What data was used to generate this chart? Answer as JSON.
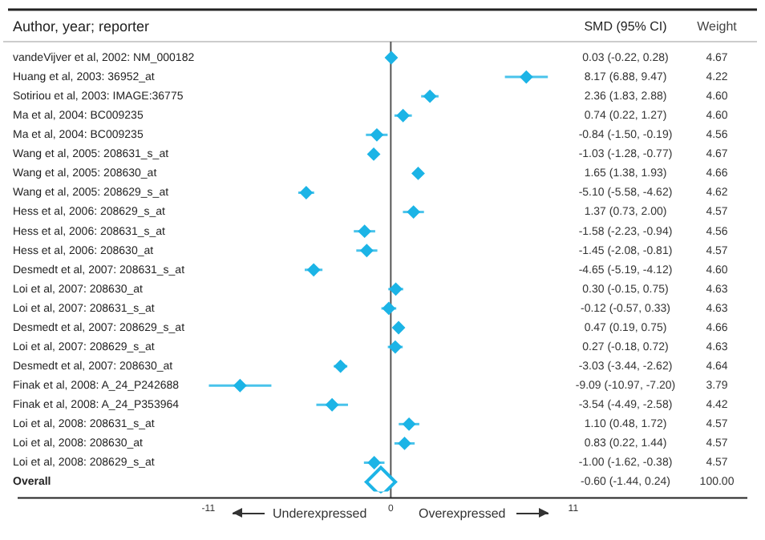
{
  "chart_data": {
    "type": "scatter",
    "orientation": "horizontal",
    "ylabel": "Author, year; reporter",
    "categories": [
      "vandeVijver et al, 2002: NM_000182",
      "Huang et al, 2003: 36952_at",
      "Sotiriou et al, 2003: IMAGE:36775",
      "Ma et al, 2004: BC009235",
      "Ma et al, 2004: BC009235",
      "Wang et al, 2005: 208631_s_at",
      "Wang et al, 2005: 208630_at",
      "Wang et al, 2005: 208629_s_at",
      "Hess et al, 2006: 208629_s_at",
      "Hess et al, 2006: 208631_s_at",
      "Hess et al, 2006: 208630_at",
      "Desmedt et al, 2007: 208631_s_at",
      "Loi et al, 2007: 208630_at",
      "Loi et al, 2007: 208631_s_at",
      "Desmedt et al, 2007: 208629_s_at",
      "Loi et al, 2007: 208629_s_at",
      "Desmedt et al, 2007: 208630_at",
      "Finak et al, 2008: A_24_P242688",
      "Finak et al, 2008: A_24_P353964",
      "Loi et al, 2008: 208631_s_at",
      "Loi et al, 2008: 208630_at",
      "Loi et al, 2008: 208629_s_at",
      "Overall"
    ],
    "series": [
      {
        "color": "#1cb4e6",
        "marker": "diamond",
        "values": [
          0.03,
          8.17,
          2.36,
          0.74,
          -0.84,
          -1.03,
          1.65,
          -5.1,
          1.37,
          -1.58,
          -1.45,
          -4.65,
          0.3,
          -0.12,
          0.47,
          0.27,
          -3.03,
          -9.09,
          -3.54,
          1.1,
          0.83,
          -1.0,
          null
        ],
        "errors": [
          [
            -0.22,
            0.28
          ],
          [
            6.88,
            9.47
          ],
          [
            1.83,
            2.88
          ],
          [
            0.22,
            1.27
          ],
          [
            -1.5,
            -0.19
          ],
          [
            -1.28,
            -0.77
          ],
          [
            1.38,
            1.93
          ],
          [
            -5.58,
            -4.62
          ],
          [
            0.73,
            2.0
          ],
          [
            -2.23,
            -0.94
          ],
          [
            -2.08,
            -0.81
          ],
          [
            -5.19,
            -4.12
          ],
          [
            -0.15,
            0.75
          ],
          [
            -0.57,
            0.33
          ],
          [
            0.19,
            0.75
          ],
          [
            -0.18,
            0.72
          ],
          [
            -3.44,
            -2.62
          ],
          [
            -10.97,
            -7.2
          ],
          [
            -4.49,
            -2.58
          ],
          [
            0.48,
            1.72
          ],
          [
            0.22,
            1.44
          ],
          [
            -1.62,
            -0.38
          ],
          null
        ]
      },
      {
        "color": "#1cb4e6",
        "marker": "diamond",
        "values": [
          null,
          null,
          null,
          null,
          null,
          null,
          null,
          null,
          null,
          null,
          null,
          null,
          null,
          null,
          null,
          null,
          null,
          null,
          null,
          null,
          null,
          null,
          -0.6
        ],
        "errors": [
          null,
          null,
          null,
          null,
          null,
          null,
          null,
          null,
          null,
          null,
          null,
          null,
          null,
          null,
          null,
          null,
          null,
          null,
          null,
          null,
          null,
          null,
          [
            -1.44,
            0.24
          ]
        ]
      }
    ],
    "xlim": [
      -22.5,
      21.5
    ],
    "xticks": [
      -11,
      0,
      11
    ],
    "ref_lines": [
      {
        "axis": "x",
        "value": 0,
        "color": "#555555"
      }
    ],
    "grid": false,
    "legend": false,
    "annotations": [
      "SMD (95% CI)",
      "Weight",
      "Underexpressed",
      "Overexpressed",
      "0.03 (-0.22, 0.28)",
      "8.17 (6.88, 9.47)",
      "2.36 (1.83, 2.88)",
      "0.74 (0.22, 1.27)",
      "-0.84 (-1.50, -0.19)",
      "-1.03 (-1.28, -0.77)",
      "1.65 (1.38, 1.93)",
      "-5.10 (-5.58, -4.62)",
      "1.37 (0.73, 2.00)",
      "-1.58 (-2.23, -0.94)",
      "-1.45 (-2.08, -0.81)",
      "-4.65 (-5.19, -4.12)",
      "0.30 (-0.15, 0.75)",
      "-0.12 (-0.57, 0.33)",
      "0.47 (0.19, 0.75)",
      "0.27 (-0.18, 0.72)",
      "-3.03 (-3.44, -2.62)",
      "-9.09 (-10.97, -7.20)",
      "-3.54 (-4.49, -2.58)",
      "1.10 (0.48, 1.72)",
      "0.83 (0.22, 1.44)",
      "-1.00 (-1.62, -0.38)",
      "-0.60 (-1.44, 0.24)",
      "4.67",
      "4.22",
      "4.60",
      "4.60",
      "4.56",
      "4.67",
      "4.66",
      "4.62",
      "4.57",
      "4.56",
      "4.57",
      "4.60",
      "4.63",
      "4.63",
      "4.66",
      "4.63",
      "4.64",
      "3.79",
      "4.42",
      "4.57",
      "4.57",
      "4.57",
      "100.00"
    ]
  }
}
